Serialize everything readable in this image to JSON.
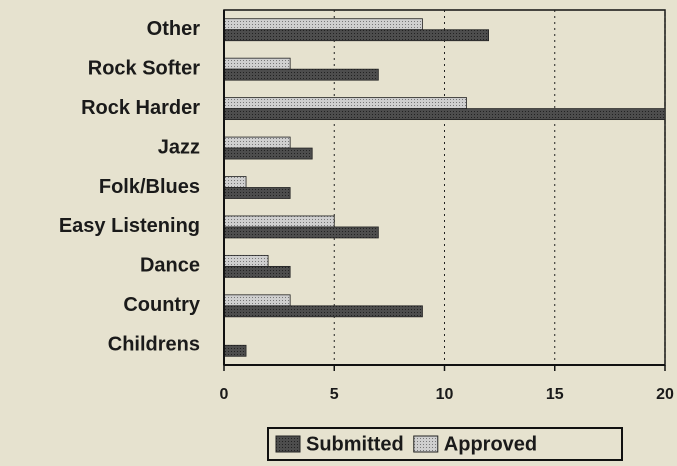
{
  "chart_data": {
    "type": "bar",
    "orientation": "horizontal",
    "categories": [
      "Other",
      "Rock Softer",
      "Rock Harder",
      "Jazz",
      "Folk/Blues",
      "Easy Listening",
      "Dance",
      "Country",
      "Childrens"
    ],
    "series": [
      {
        "name": "Approved",
        "color": "#cfcfcf",
        "values": [
          9,
          3,
          11,
          3,
          1,
          5,
          2,
          3,
          0
        ]
      },
      {
        "name": "Submitted",
        "color": "#4d4d4d",
        "values": [
          12,
          7,
          20,
          4,
          3,
          7,
          3,
          9,
          1
        ]
      }
    ],
    "xlim": [
      0,
      20
    ],
    "xticks": [
      0,
      5,
      10,
      15,
      20
    ],
    "grid": true
  }
}
